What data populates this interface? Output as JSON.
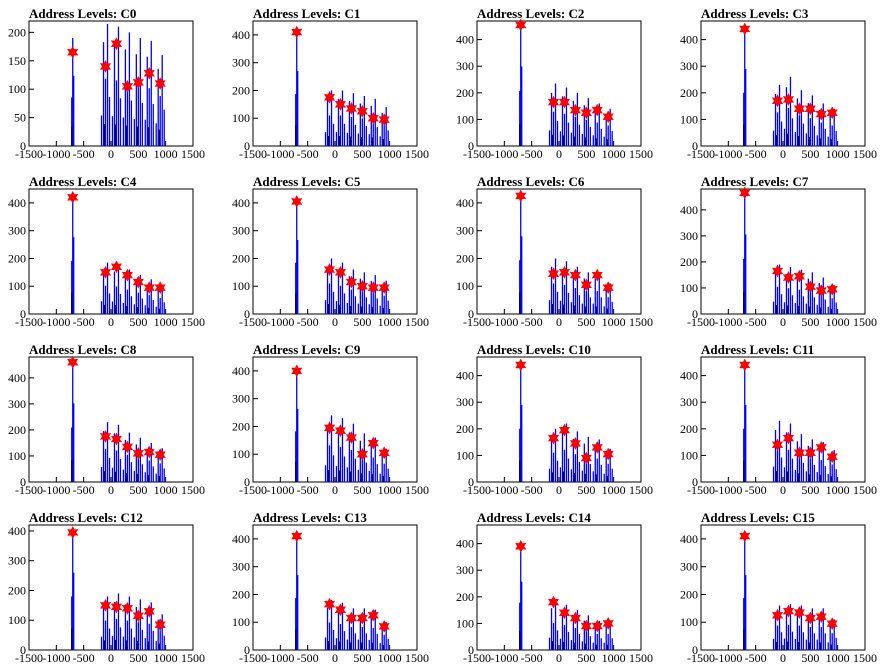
{
  "figure": {
    "layout": {
      "rows": 4,
      "cols": 4
    },
    "colors": {
      "histogram": "#0000ff",
      "peak_marker": "#ff0000",
      "axis": "#000000"
    },
    "marker": "red-star"
  },
  "chart_data": [
    {
      "type": "bar",
      "title": "Address Levels: C0",
      "xlim": [
        -1500,
        1500
      ],
      "ylim": [
        0,
        220
      ],
      "yticks": [
        0,
        50,
        100,
        150,
        200
      ],
      "xticks": [
        -1500,
        -1000,
        -500,
        0,
        500,
        1000,
        1500
      ],
      "xtick_labels": [
        "-1500",
        "-1000",
        "-500",
        "0",
        "500",
        "1000",
        "1500"
      ],
      "peaks": [
        {
          "x": -700,
          "y": 165,
          "max": 190
        },
        {
          "x": -100,
          "y": 140,
          "max": 215
        },
        {
          "x": 100,
          "y": 180,
          "max": 210
        },
        {
          "x": 300,
          "y": 105,
          "max": 200
        },
        {
          "x": 500,
          "y": 112,
          "max": 190
        },
        {
          "x": 700,
          "y": 128,
          "max": 185
        },
        {
          "x": 900,
          "y": 110,
          "max": 160
        }
      ]
    },
    {
      "type": "bar",
      "title": "Address Levels: C1",
      "xlim": [
        -1500,
        1500
      ],
      "ylim": [
        0,
        450
      ],
      "yticks": [
        0,
        100,
        200,
        300,
        400
      ],
      "xticks": [
        -1500,
        -1000,
        -500,
        0,
        500,
        1000,
        1500
      ],
      "xtick_labels": [
        "-1500",
        "-1000",
        "-500",
        "0",
        "500",
        "1000",
        "1500"
      ],
      "peaks": [
        {
          "x": -700,
          "y": 410,
          "max": 415
        },
        {
          "x": -100,
          "y": 175,
          "max": 200
        },
        {
          "x": 100,
          "y": 150,
          "max": 200
        },
        {
          "x": 300,
          "y": 135,
          "max": 190
        },
        {
          "x": 500,
          "y": 125,
          "max": 180
        },
        {
          "x": 700,
          "y": 100,
          "max": 170
        },
        {
          "x": 900,
          "y": 95,
          "max": 140
        }
      ]
    },
    {
      "type": "bar",
      "title": "Address Levels: C2",
      "xlim": [
        -1500,
        1500
      ],
      "ylim": [
        0,
        470
      ],
      "yticks": [
        0,
        100,
        200,
        300,
        400
      ],
      "xticks": [
        -1500,
        -1000,
        -500,
        0,
        500,
        1000,
        1500
      ],
      "xtick_labels": [
        "-1500",
        "-1000",
        "-500",
        "0",
        "500",
        "1000",
        "1500"
      ],
      "peaks": [
        {
          "x": -700,
          "y": 455,
          "max": 460
        },
        {
          "x": -100,
          "y": 165,
          "max": 235
        },
        {
          "x": 100,
          "y": 165,
          "max": 220
        },
        {
          "x": 300,
          "y": 135,
          "max": 200
        },
        {
          "x": 500,
          "y": 125,
          "max": 180
        },
        {
          "x": 700,
          "y": 135,
          "max": 160
        },
        {
          "x": 900,
          "y": 110,
          "max": 140
        }
      ]
    },
    {
      "type": "bar",
      "title": "Address Levels: C3",
      "xlim": [
        -1500,
        1500
      ],
      "ylim": [
        0,
        470
      ],
      "yticks": [
        0,
        100,
        200,
        300,
        400
      ],
      "xticks": [
        -1500,
        -1000,
        -500,
        0,
        500,
        1000,
        1500
      ],
      "xtick_labels": [
        "-1500",
        "-1000",
        "-500",
        "0",
        "500",
        "1000",
        "1500"
      ],
      "peaks": [
        {
          "x": -700,
          "y": 440,
          "max": 445
        },
        {
          "x": -100,
          "y": 170,
          "max": 230
        },
        {
          "x": 100,
          "y": 175,
          "max": 260
        },
        {
          "x": 300,
          "y": 140,
          "max": 210
        },
        {
          "x": 500,
          "y": 140,
          "max": 190
        },
        {
          "x": 700,
          "y": 120,
          "max": 160
        },
        {
          "x": 900,
          "y": 125,
          "max": 140
        }
      ]
    },
    {
      "type": "bar",
      "title": "Address Levels: C4",
      "xlim": [
        -1500,
        1500
      ],
      "ylim": [
        0,
        450
      ],
      "yticks": [
        0,
        100,
        200,
        300,
        400
      ],
      "xticks": [
        -1500,
        -1000,
        -500,
        0,
        500,
        1000,
        1500
      ],
      "xtick_labels": [
        "-1500",
        "-1000",
        "-500",
        "0",
        "500",
        "1000",
        "1500"
      ],
      "peaks": [
        {
          "x": -700,
          "y": 420,
          "max": 425
        },
        {
          "x": -100,
          "y": 150,
          "max": 185
        },
        {
          "x": 100,
          "y": 170,
          "max": 180
        },
        {
          "x": 300,
          "y": 140,
          "max": 160
        },
        {
          "x": 500,
          "y": 115,
          "max": 140
        },
        {
          "x": 700,
          "y": 95,
          "max": 125
        },
        {
          "x": 900,
          "y": 95,
          "max": 105
        }
      ]
    },
    {
      "type": "bar",
      "title": "Address Levels: C5",
      "xlim": [
        -1500,
        1500
      ],
      "ylim": [
        0,
        450
      ],
      "yticks": [
        0,
        100,
        200,
        300,
        400
      ],
      "xticks": [
        -1500,
        -1000,
        -500,
        0,
        500,
        1000,
        1500
      ],
      "xtick_labels": [
        "-1500",
        "-1000",
        "-500",
        "0",
        "500",
        "1000",
        "1500"
      ],
      "peaks": [
        {
          "x": -700,
          "y": 405,
          "max": 410
        },
        {
          "x": -100,
          "y": 160,
          "max": 200
        },
        {
          "x": 100,
          "y": 150,
          "max": 185
        },
        {
          "x": 300,
          "y": 115,
          "max": 160
        },
        {
          "x": 500,
          "y": 100,
          "max": 150
        },
        {
          "x": 700,
          "y": 95,
          "max": 140
        },
        {
          "x": 900,
          "y": 95,
          "max": 120
        }
      ]
    },
    {
      "type": "bar",
      "title": "Address Levels: C6",
      "xlim": [
        -1500,
        1500
      ],
      "ylim": [
        0,
        450
      ],
      "yticks": [
        0,
        100,
        200,
        300,
        400
      ],
      "xticks": [
        -1500,
        -1000,
        -500,
        0,
        500,
        1000,
        1500
      ],
      "xtick_labels": [
        "-1500",
        "-1000",
        "-500",
        "0",
        "500",
        "1000",
        "1500"
      ],
      "peaks": [
        {
          "x": -700,
          "y": 425,
          "max": 430
        },
        {
          "x": -100,
          "y": 145,
          "max": 200
        },
        {
          "x": 100,
          "y": 150,
          "max": 190
        },
        {
          "x": 300,
          "y": 140,
          "max": 170
        },
        {
          "x": 500,
          "y": 105,
          "max": 150
        },
        {
          "x": 700,
          "y": 140,
          "max": 150
        },
        {
          "x": 900,
          "y": 95,
          "max": 110
        }
      ]
    },
    {
      "type": "bar",
      "title": "Address Levels: C7",
      "xlim": [
        -1500,
        1500
      ],
      "ylim": [
        0,
        480
      ],
      "yticks": [
        0,
        100,
        200,
        300,
        400
      ],
      "xticks": [
        -1500,
        -1000,
        -500,
        0,
        500,
        1000,
        1500
      ],
      "xtick_labels": [
        "-1500",
        "-1000",
        "-500",
        "0",
        "500",
        "1000",
        "1500"
      ],
      "peaks": [
        {
          "x": -700,
          "y": 465,
          "max": 470
        },
        {
          "x": -100,
          "y": 165,
          "max": 190
        },
        {
          "x": 100,
          "y": 140,
          "max": 180
        },
        {
          "x": 300,
          "y": 145,
          "max": 170
        },
        {
          "x": 500,
          "y": 105,
          "max": 160
        },
        {
          "x": 700,
          "y": 90,
          "max": 140
        },
        {
          "x": 900,
          "y": 95,
          "max": 110
        }
      ]
    },
    {
      "type": "bar",
      "title": "Address Levels: C8",
      "xlim": [
        -1500,
        1500
      ],
      "ylim": [
        0,
        480
      ],
      "yticks": [
        0,
        100,
        200,
        300,
        400
      ],
      "xticks": [
        -1500,
        -1000,
        -500,
        0,
        500,
        1000,
        1500
      ],
      "xtick_labels": [
        "-1500",
        "-1000",
        "-500",
        "0",
        "500",
        "1000",
        "1500"
      ],
      "peaks": [
        {
          "x": -700,
          "y": 460,
          "max": 465
        },
        {
          "x": -100,
          "y": 175,
          "max": 230
        },
        {
          "x": 100,
          "y": 165,
          "max": 220
        },
        {
          "x": 300,
          "y": 135,
          "max": 190
        },
        {
          "x": 500,
          "y": 110,
          "max": 170
        },
        {
          "x": 700,
          "y": 115,
          "max": 150
        },
        {
          "x": 900,
          "y": 105,
          "max": 130
        }
      ]
    },
    {
      "type": "bar",
      "title": "Address Levels: C9",
      "xlim": [
        -1500,
        1500
      ],
      "ylim": [
        0,
        450
      ],
      "yticks": [
        0,
        100,
        200,
        300,
        400
      ],
      "xticks": [
        -1500,
        -1000,
        -500,
        0,
        500,
        1000,
        1500
      ],
      "xtick_labels": [
        "-1500",
        "-1000",
        "-500",
        "0",
        "500",
        "1000",
        "1500"
      ],
      "peaks": [
        {
          "x": -700,
          "y": 400,
          "max": 405
        },
        {
          "x": -100,
          "y": 195,
          "max": 240
        },
        {
          "x": 100,
          "y": 185,
          "max": 230
        },
        {
          "x": 300,
          "y": 160,
          "max": 210
        },
        {
          "x": 500,
          "y": 100,
          "max": 175
        },
        {
          "x": 700,
          "y": 140,
          "max": 160
        },
        {
          "x": 900,
          "y": 105,
          "max": 120
        }
      ]
    },
    {
      "type": "bar",
      "title": "Address Levels: C10",
      "xlim": [
        -1500,
        1500
      ],
      "ylim": [
        0,
        470
      ],
      "yticks": [
        0,
        100,
        200,
        300,
        400
      ],
      "xticks": [
        -1500,
        -1000,
        -500,
        0,
        500,
        1000,
        1500
      ],
      "xtick_labels": [
        "-1500",
        "-1000",
        "-500",
        "0",
        "500",
        "1000",
        "1500"
      ],
      "peaks": [
        {
          "x": -700,
          "y": 440,
          "max": 445
        },
        {
          "x": -100,
          "y": 165,
          "max": 200
        },
        {
          "x": 100,
          "y": 195,
          "max": 220
        },
        {
          "x": 300,
          "y": 145,
          "max": 190
        },
        {
          "x": 500,
          "y": 90,
          "max": 170
        },
        {
          "x": 700,
          "y": 130,
          "max": 160
        },
        {
          "x": 900,
          "y": 105,
          "max": 125
        }
      ]
    },
    {
      "type": "bar",
      "title": "Address Levels: C11",
      "xlim": [
        -1500,
        1500
      ],
      "ylim": [
        0,
        470
      ],
      "yticks": [
        0,
        100,
        200,
        300,
        400
      ],
      "xticks": [
        -1500,
        -1000,
        -500,
        0,
        500,
        1000,
        1500
      ],
      "xtick_labels": [
        "-1500",
        "-1000",
        "-500",
        "0",
        "500",
        "1000",
        "1500"
      ],
      "peaks": [
        {
          "x": -700,
          "y": 440,
          "max": 445
        },
        {
          "x": -100,
          "y": 140,
          "max": 230
        },
        {
          "x": 100,
          "y": 165,
          "max": 220
        },
        {
          "x": 300,
          "y": 110,
          "max": 180
        },
        {
          "x": 500,
          "y": 110,
          "max": 160
        },
        {
          "x": 700,
          "y": 130,
          "max": 150
        },
        {
          "x": 900,
          "y": 95,
          "max": 120
        }
      ]
    },
    {
      "type": "bar",
      "title": "Address Levels: C12",
      "xlim": [
        -1500,
        1500
      ],
      "ylim": [
        0,
        420
      ],
      "yticks": [
        0,
        100,
        200,
        300,
        400
      ],
      "xticks": [
        -1500,
        -1000,
        -500,
        0,
        500,
        1000,
        1500
      ],
      "xtick_labels": [
        "-1500",
        "-1000",
        "-500",
        "0",
        "500",
        "1000",
        "1500"
      ],
      "peaks": [
        {
          "x": -700,
          "y": 395,
          "max": 400
        },
        {
          "x": -100,
          "y": 150,
          "max": 180
        },
        {
          "x": 100,
          "y": 145,
          "max": 190
        },
        {
          "x": 300,
          "y": 140,
          "max": 180
        },
        {
          "x": 500,
          "y": 115,
          "max": 170
        },
        {
          "x": 700,
          "y": 130,
          "max": 160
        },
        {
          "x": 900,
          "y": 85,
          "max": 120
        }
      ]
    },
    {
      "type": "bar",
      "title": "Address Levels: C13",
      "xlim": [
        -1500,
        1500
      ],
      "ylim": [
        0,
        450
      ],
      "yticks": [
        0,
        100,
        200,
        300,
        400
      ],
      "xticks": [
        -1500,
        -1000,
        -500,
        0,
        500,
        1000,
        1500
      ],
      "xtick_labels": [
        "-1500",
        "-1000",
        "-500",
        "0",
        "500",
        "1000",
        "1500"
      ],
      "peaks": [
        {
          "x": -700,
          "y": 410,
          "max": 415
        },
        {
          "x": -100,
          "y": 165,
          "max": 180
        },
        {
          "x": 100,
          "y": 145,
          "max": 170
        },
        {
          "x": 300,
          "y": 115,
          "max": 150
        },
        {
          "x": 500,
          "y": 115,
          "max": 150
        },
        {
          "x": 700,
          "y": 125,
          "max": 145
        },
        {
          "x": 900,
          "y": 85,
          "max": 100
        }
      ]
    },
    {
      "type": "bar",
      "title": "Address Levels: C14",
      "xlim": [
        -1500,
        1500
      ],
      "ylim": [
        0,
        470
      ],
      "yticks": [
        0,
        100,
        200,
        300,
        400
      ],
      "xticks": [
        -1500,
        -1000,
        -500,
        0,
        500,
        1000,
        1500
      ],
      "xtick_labels": [
        "-1500",
        "-1000",
        "-500",
        "0",
        "500",
        "1000",
        "1500"
      ],
      "peaks": [
        {
          "x": -700,
          "y": 390,
          "max": 395
        },
        {
          "x": -100,
          "y": 180,
          "max": 185
        },
        {
          "x": 100,
          "y": 140,
          "max": 170
        },
        {
          "x": 300,
          "y": 120,
          "max": 150
        },
        {
          "x": 500,
          "y": 90,
          "max": 130
        },
        {
          "x": 700,
          "y": 90,
          "max": 110
        },
        {
          "x": 900,
          "y": 100,
          "max": 110
        }
      ]
    },
    {
      "type": "bar",
      "title": "Address Levels: C15",
      "xlim": [
        -1500,
        1500
      ],
      "ylim": [
        0,
        450
      ],
      "yticks": [
        0,
        100,
        200,
        300,
        400
      ],
      "xticks": [
        -1500,
        -1000,
        -500,
        0,
        500,
        1000,
        1500
      ],
      "xtick_labels": [
        "-1500",
        "-1000",
        "-500",
        "0",
        "500",
        "1000",
        "1500"
      ],
      "peaks": [
        {
          "x": -700,
          "y": 410,
          "max": 415
        },
        {
          "x": -100,
          "y": 125,
          "max": 160
        },
        {
          "x": 100,
          "y": 140,
          "max": 165
        },
        {
          "x": 300,
          "y": 135,
          "max": 160
        },
        {
          "x": 500,
          "y": 115,
          "max": 150
        },
        {
          "x": 700,
          "y": 120,
          "max": 150
        },
        {
          "x": 900,
          "y": 95,
          "max": 110
        }
      ]
    }
  ]
}
